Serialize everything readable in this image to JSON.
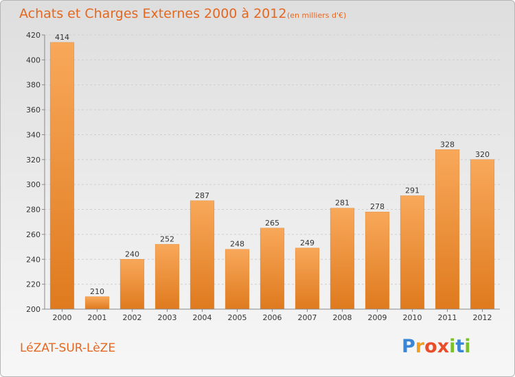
{
  "title": "Achats et Charges Externes 2000 à 2012",
  "subtitle": "(en milliers d'€)",
  "commune": "LéZAT-SUR-LèZE",
  "logo": {
    "letters": [
      "P",
      "r",
      "o",
      "x",
      "i",
      "t",
      "i"
    ],
    "colors": [
      "#3a86d6",
      "#f0a020",
      "#e94e2b",
      "#e94e2b",
      "#7bbf2a",
      "#3a86d6",
      "#7bbf2a"
    ]
  },
  "colors": {
    "bar_top": "#f8a85a",
    "bar_bottom": "#df7a1e",
    "accent": "#e5671f"
  },
  "chart_data": {
    "type": "bar",
    "categories": [
      "2000",
      "2001",
      "2002",
      "2003",
      "2004",
      "2005",
      "2006",
      "2007",
      "2008",
      "2009",
      "2010",
      "2011",
      "2012"
    ],
    "values": [
      414,
      210,
      240,
      252,
      287,
      248,
      265,
      249,
      281,
      278,
      291,
      328,
      320
    ],
    "ylim": [
      200,
      420
    ],
    "yticks": [
      200,
      220,
      240,
      260,
      280,
      300,
      320,
      340,
      360,
      380,
      400,
      420
    ],
    "grid": "horizontal dashed",
    "title": "Achats et Charges Externes 2000 à 2012",
    "xlabel": "",
    "ylabel": ""
  }
}
